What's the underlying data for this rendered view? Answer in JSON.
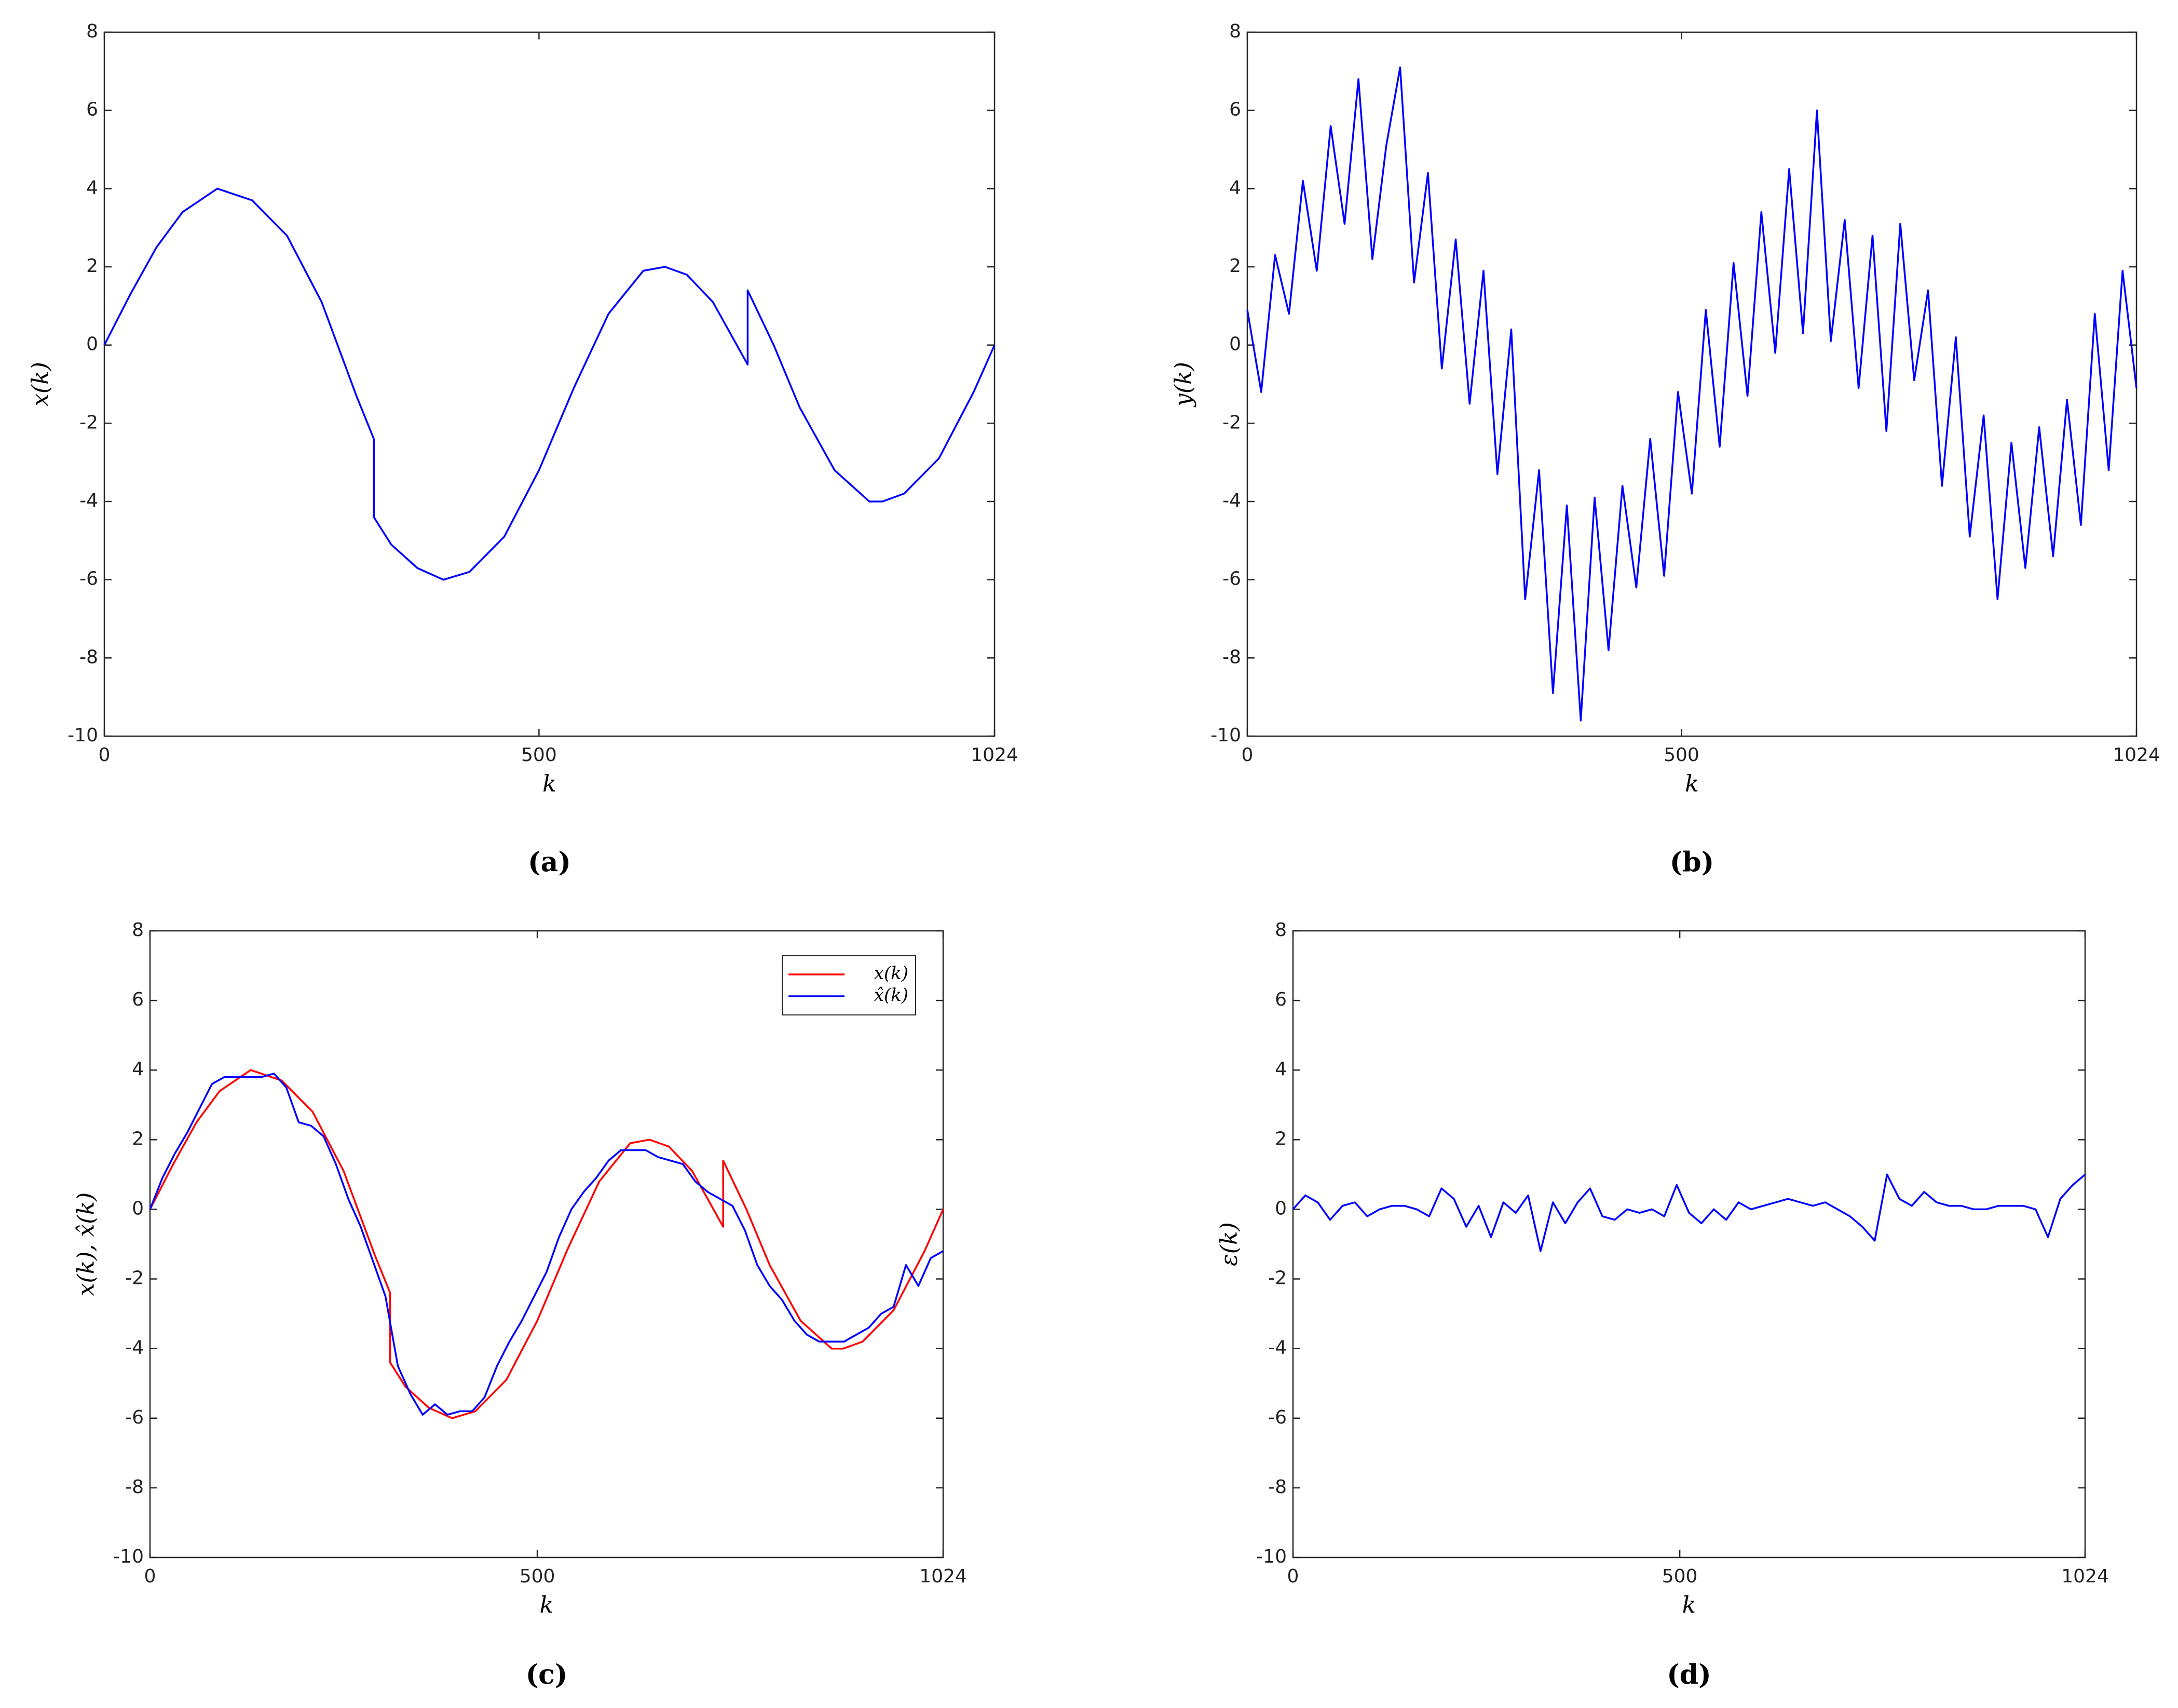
{
  "chart_data": [
    {
      "type": "line",
      "caption": "(a)",
      "xlabel": "k",
      "ylabel": "x(k)",
      "xlim": [
        0,
        1024
      ],
      "ylim": [
        -10,
        8
      ],
      "xticks": [
        0,
        500,
        1024
      ],
      "yticks": [
        -10,
        -8,
        -6,
        -4,
        -2,
        0,
        2,
        4,
        6,
        8
      ],
      "series": [
        {
          "color": "#0000ff",
          "x": [
            0,
            30,
            60,
            90,
            130,
            170,
            210,
            250,
            290,
            310,
            310,
            330,
            360,
            390,
            420,
            460,
            500,
            540,
            580,
            620,
            645,
            670,
            700,
            740,
            740,
            770,
            800,
            840,
            880,
            895,
            920,
            960,
            1000,
            1024
          ],
          "values": [
            0,
            1.3,
            2.5,
            3.4,
            4,
            3.7,
            2.8,
            1.1,
            -1.3,
            -2.4,
            -4.4,
            -5.1,
            -5.7,
            -6,
            -5.8,
            -4.9,
            -3.2,
            -1.1,
            0.8,
            1.9,
            2,
            1.8,
            1.1,
            -0.5,
            1.4,
            0,
            -1.6,
            -3.2,
            -4,
            -4,
            -3.8,
            -2.9,
            -1.2,
            0
          ]
        }
      ]
    },
    {
      "type": "line",
      "caption": "(b)",
      "xlabel": "k",
      "ylabel": "y(k)",
      "xlim": [
        0,
        1024
      ],
      "ylim": [
        -10,
        8
      ],
      "xticks": [
        0,
        500,
        1024
      ],
      "yticks": [
        -10,
        -8,
        -6,
        -4,
        -2,
        0,
        2,
        4,
        6,
        8
      ],
      "series": [
        {
          "color": "#0000ff",
          "x": [
            0,
            16,
            32,
            48,
            64,
            80,
            96,
            112,
            128,
            144,
            160,
            176,
            192,
            208,
            224,
            240,
            256,
            272,
            288,
            304,
            320,
            336,
            352,
            368,
            384,
            400,
            416,
            432,
            448,
            464,
            480,
            496,
            512,
            528,
            544,
            560,
            576,
            592,
            608,
            624,
            640,
            656,
            672,
            688,
            704,
            720,
            736,
            752,
            768,
            784,
            800,
            816,
            832,
            848,
            864,
            880,
            896,
            912,
            928,
            944,
            960,
            976,
            992,
            1008,
            1024
          ],
          "values": [
            0.9,
            -1.2,
            2.3,
            0.8,
            4.2,
            1.9,
            5.6,
            3.1,
            6.8,
            2.2,
            5.1,
            7.1,
            1.6,
            4.4,
            -0.6,
            2.7,
            -1.5,
            1.9,
            -3.3,
            0.4,
            -6.5,
            -3.2,
            -8.9,
            -4.1,
            -9.6,
            -3.9,
            -7.8,
            -3.6,
            -6.2,
            -2.4,
            -5.9,
            -1.2,
            -3.8,
            0.9,
            -2.6,
            2.1,
            -1.3,
            3.4,
            -0.2,
            4.5,
            0.3,
            6,
            0.1,
            3.2,
            -1.1,
            2.8,
            -2.2,
            3.1,
            -0.9,
            1.4,
            -3.6,
            0.2,
            -4.9,
            -1.8,
            -6.5,
            -2.5,
            -5.7,
            -2.1,
            -5.4,
            -1.4,
            -4.6,
            0.8,
            -3.2,
            1.9,
            -1.1
          ]
        }
      ]
    },
    {
      "type": "line",
      "caption": "(c)",
      "xlabel": "k",
      "ylabel": "x(k), x̂(k)",
      "xlim": [
        0,
        1024
      ],
      "ylim": [
        -10,
        8
      ],
      "xticks": [
        0,
        500,
        1024
      ],
      "yticks": [
        -10,
        -8,
        -6,
        -4,
        -2,
        0,
        2,
        4,
        6,
        8
      ],
      "legend": "top-right",
      "series": [
        {
          "name": "x(k)",
          "color": "#ff0000",
          "x": [
            0,
            30,
            60,
            90,
            130,
            170,
            210,
            250,
            290,
            310,
            310,
            330,
            360,
            390,
            420,
            460,
            500,
            540,
            580,
            620,
            645,
            670,
            700,
            740,
            740,
            770,
            800,
            840,
            880,
            895,
            920,
            960,
            1000,
            1024
          ],
          "values": [
            0,
            1.3,
            2.5,
            3.4,
            4,
            3.7,
            2.8,
            1.1,
            -1.3,
            -2.4,
            -4.4,
            -5.1,
            -5.7,
            -6,
            -5.8,
            -4.9,
            -3.2,
            -1.1,
            0.8,
            1.9,
            2,
            1.8,
            1.1,
            -0.5,
            1.4,
            0,
            -1.6,
            -3.2,
            -4,
            -4,
            -3.8,
            -2.9,
            -1.2,
            0
          ]
        },
        {
          "name": "x̂(k)",
          "color": "#0000ff",
          "x": [
            0,
            16,
            32,
            48,
            64,
            80,
            96,
            112,
            128,
            144,
            160,
            176,
            192,
            208,
            224,
            240,
            256,
            272,
            288,
            304,
            320,
            336,
            352,
            368,
            384,
            400,
            416,
            432,
            448,
            464,
            480,
            496,
            512,
            528,
            544,
            560,
            576,
            592,
            608,
            624,
            640,
            656,
            672,
            688,
            704,
            720,
            736,
            752,
            768,
            784,
            800,
            816,
            832,
            848,
            864,
            880,
            896,
            912,
            928,
            944,
            960,
            976,
            992,
            1008,
            1024
          ],
          "values": [
            0,
            0.9,
            1.6,
            2.2,
            2.9,
            3.6,
            3.8,
            3.8,
            3.8,
            3.8,
            3.9,
            3.5,
            2.5,
            2.4,
            2.1,
            1.3,
            0.3,
            -0.5,
            -1.5,
            -2.5,
            -4.5,
            -5.3,
            -5.9,
            -5.6,
            -5.9,
            -5.8,
            -5.8,
            -5.4,
            -4.5,
            -3.8,
            -3.2,
            -2.5,
            -1.8,
            -0.8,
            0,
            0.5,
            0.9,
            1.4,
            1.7,
            1.7,
            1.7,
            1.5,
            1.4,
            1.3,
            0.8,
            0.5,
            0.3,
            0.1,
            -0.6,
            -1.6,
            -2.2,
            -2.6,
            -3.2,
            -3.6,
            -3.8,
            -3.8,
            -3.8,
            -3.6,
            -3.4,
            -3,
            -2.8,
            -1.6,
            -2.2,
            -1.4,
            -1.2
          ]
        }
      ]
    },
    {
      "type": "line",
      "caption": "(d)",
      "xlabel": "k",
      "ylabel": "ε(k)",
      "xlim": [
        0,
        1024
      ],
      "ylim": [
        -10,
        8
      ],
      "xticks": [
        0,
        500,
        1024
      ],
      "yticks": [
        -10,
        -8,
        -6,
        -4,
        -2,
        0,
        2,
        4,
        6,
        8
      ],
      "series": [
        {
          "color": "#0000ff",
          "x": [
            0,
            16,
            32,
            48,
            64,
            80,
            96,
            112,
            128,
            144,
            160,
            176,
            192,
            208,
            224,
            240,
            256,
            272,
            288,
            304,
            320,
            336,
            352,
            368,
            384,
            400,
            416,
            432,
            448,
            464,
            480,
            496,
            512,
            528,
            544,
            560,
            576,
            592,
            608,
            624,
            640,
            656,
            672,
            688,
            704,
            720,
            736,
            752,
            768,
            784,
            800,
            816,
            832,
            848,
            864,
            880,
            896,
            912,
            928,
            944,
            960,
            976,
            992,
            1008,
            1024
          ],
          "values": [
            0,
            0.4,
            0.2,
            -0.3,
            0.1,
            0.2,
            -0.2,
            0,
            0.1,
            0.1,
            0,
            -0.2,
            0.6,
            0.3,
            -0.5,
            0.1,
            -0.8,
            0.2,
            -0.1,
            0.4,
            -1.2,
            0.2,
            -0.4,
            0.2,
            0.6,
            -0.2,
            -0.3,
            0,
            -0.1,
            0,
            -0.2,
            0.7,
            -0.1,
            -0.4,
            0,
            -0.3,
            0.2,
            0,
            0.1,
            0.2,
            0.3,
            0.2,
            0.1,
            0.2,
            0,
            -0.2,
            -0.5,
            -0.9,
            1,
            0.3,
            0.1,
            0.5,
            0.2,
            0.1,
            0.1,
            0,
            0,
            0.1,
            0.1,
            0.1,
            0,
            -0.8,
            0.3,
            0.7,
            1
          ]
        }
      ]
    }
  ]
}
